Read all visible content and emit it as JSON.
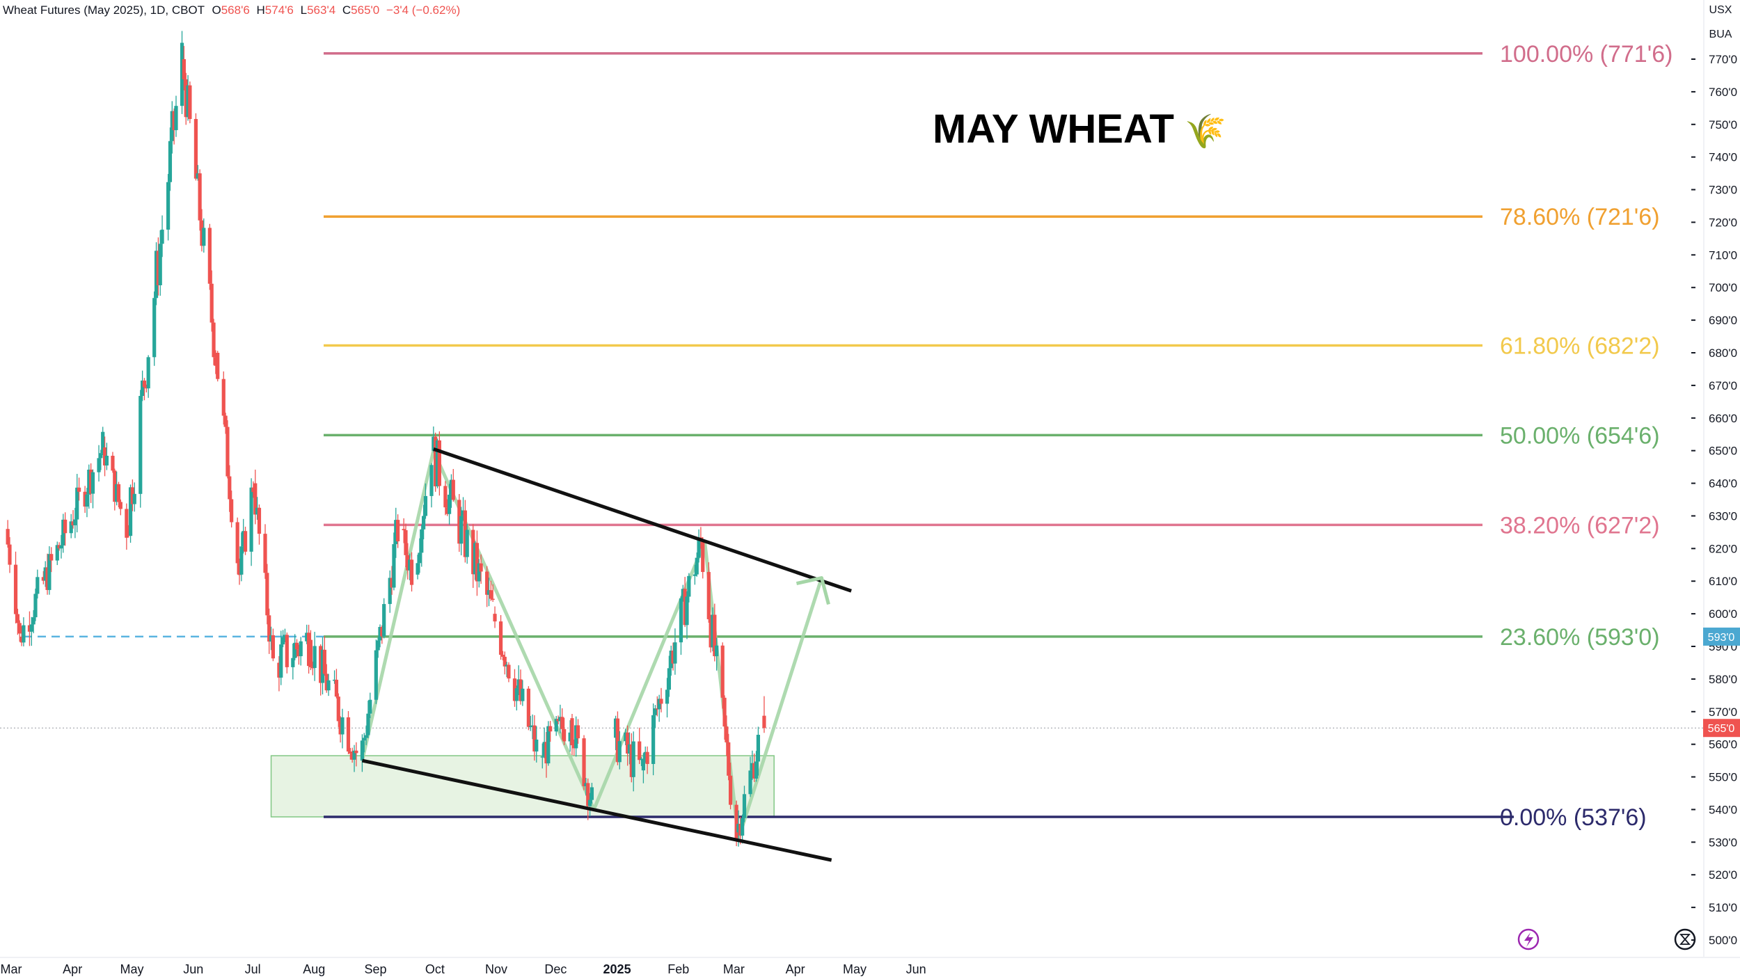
{
  "header": {
    "symbol_title": "Wheat Futures (May 2025), 1D, CBOT",
    "open_label": "O",
    "open_value": "568'6",
    "high_label": "H",
    "high_value": "574'6",
    "low_label": "L",
    "low_value": "563'4",
    "close_label": "C",
    "close_value": "565'0",
    "change": "−3'4 (−0.62%)"
  },
  "price_scale": {
    "currency": "USX",
    "unit": "BUA",
    "current_price_label": "565'0",
    "line_price_label": "593'0"
  },
  "annotation_title": "MAY WHEAT",
  "annotation_emoji": "🌾",
  "colors": {
    "up": "#26a69a",
    "down": "#ef5350",
    "fib_100": "#d16d8b",
    "fib_786": "#f0a030",
    "fib_618": "#f2c94c",
    "fib_50": "#6ab06c",
    "fib_382": "#e0758f",
    "fib_236": "#6ab06c",
    "fib_0": "#2c2a6b",
    "zone_fill": "#e7f3e3",
    "zone_stroke": "#81c784",
    "pattern_line": "#a5d6a7",
    "channel": "#111111",
    "dashed": "#5ab4e0",
    "price_badge": "#ef5350",
    "line_badge": "#4ba8d1"
  },
  "chart_data": {
    "type": "candlestick",
    "title": "Wheat Futures (May 2025), 1D, CBOT",
    "y_axis": {
      "min": 500,
      "max": 770,
      "tick_labels": [
        "770'0",
        "760'0",
        "750'0",
        "740'0",
        "730'0",
        "720'0",
        "710'0",
        "700'0",
        "690'0",
        "680'0",
        "670'0",
        "660'0",
        "650'0",
        "640'0",
        "630'0",
        "620'0",
        "610'0",
        "600'0",
        "590'0",
        "580'0",
        "570'0",
        "560'0",
        "550'0",
        "540'0",
        "530'0",
        "520'0",
        "510'0",
        "500'0"
      ]
    },
    "x_axis": {
      "tick_labels": [
        "Mar",
        "Apr",
        "May",
        "Jun",
        "Jul",
        "Aug",
        "Sep",
        "Oct",
        "Nov",
        "Dec",
        "2025",
        "Feb",
        "Mar",
        "Apr",
        "May",
        "Jun"
      ],
      "bold_labels": [
        "2025"
      ]
    },
    "fib_levels": [
      {
        "label": "100.00% (771'6)",
        "price": 771.75,
        "color_key": "fib_100"
      },
      {
        "label": "78.60% (721'6)",
        "price": 721.75,
        "color_key": "fib_786"
      },
      {
        "label": "61.80% (682'2)",
        "price": 682.25,
        "color_key": "fib_618"
      },
      {
        "label": "50.00% (654'6)",
        "price": 654.75,
        "color_key": "fib_50"
      },
      {
        "label": "38.20% (627'2)",
        "price": 627.25,
        "color_key": "fib_382"
      },
      {
        "label": "23.60% (593'0)",
        "price": 593.0,
        "color_key": "fib_236"
      },
      {
        "label": "0.00% (537'6)",
        "price": 537.75,
        "color_key": "fib_0"
      }
    ],
    "support_zone": {
      "start": "2024-07-11",
      "end": "2025-03-22",
      "price_low": 537.75,
      "price_high": 556.5
    },
    "dashed_level": {
      "start": "2024-03-01",
      "price": 593.0
    },
    "current_price": 565.0,
    "channel_lines": [
      {
        "name": "upper",
        "from": {
          "date": "2024-10-01",
          "price": 650.5
        },
        "to": {
          "date": "2025-04-30",
          "price": 607
        }
      },
      {
        "name": "lower",
        "from": {
          "date": "2024-08-26",
          "price": 555
        },
        "to": {
          "date": "2025-04-20",
          "price": 524.5
        }
      }
    ],
    "pattern_path": [
      {
        "date": "2024-08-26",
        "price": 555
      },
      {
        "date": "2024-10-01",
        "price": 650
      },
      {
        "date": "2024-12-21",
        "price": 540
      },
      {
        "date": "2025-02-15",
        "price": 622
      },
      {
        "date": "2025-03-04",
        "price": 531
      },
      {
        "date": "2025-04-15",
        "price": 611
      }
    ],
    "candle_segments": [
      {
        "from": "2024-02-29",
        "to": "2024-03-07",
        "open": 626,
        "close": 593,
        "wiggle": 3
      },
      {
        "from": "2024-03-07",
        "to": "2024-04-18",
        "open": 593,
        "close": 651,
        "wiggle": 6
      },
      {
        "from": "2024-04-18",
        "to": "2024-04-30",
        "open": 651,
        "close": 626,
        "wiggle": 5
      },
      {
        "from": "2024-04-30",
        "to": "2024-05-28",
        "open": 626,
        "close": 770,
        "wiggle": 10
      },
      {
        "from": "2024-05-28",
        "to": "2024-06-14",
        "open": 770,
        "close": 680,
        "wiggle": 8
      },
      {
        "from": "2024-06-14",
        "to": "2024-06-26",
        "open": 680,
        "close": 612,
        "wiggle": 7
      },
      {
        "from": "2024-06-26",
        "to": "2024-07-03",
        "open": 612,
        "close": 640,
        "wiggle": 6
      },
      {
        "from": "2024-07-03",
        "to": "2024-07-13",
        "open": 640,
        "close": 585,
        "wiggle": 6
      },
      {
        "from": "2024-07-13",
        "to": "2024-07-31",
        "open": 585,
        "close": 592,
        "wiggle": 8
      },
      {
        "from": "2024-07-31",
        "to": "2024-08-26",
        "open": 592,
        "close": 555,
        "wiggle": 7
      },
      {
        "from": "2024-08-26",
        "to": "2024-09-14",
        "open": 555,
        "close": 626,
        "wiggle": 7
      },
      {
        "from": "2024-09-14",
        "to": "2024-09-22",
        "open": 626,
        "close": 612,
        "wiggle": 6
      },
      {
        "from": "2024-09-22",
        "to": "2024-10-01",
        "open": 612,
        "close": 650,
        "wiggle": 6
      },
      {
        "from": "2024-10-01",
        "to": "2024-11-01",
        "open": 650,
        "close": 600,
        "wiggle": 8
      },
      {
        "from": "2024-11-01",
        "to": "2024-11-24",
        "open": 600,
        "close": 556,
        "wiggle": 7
      },
      {
        "from": "2024-11-24",
        "to": "2024-12-10",
        "open": 556,
        "close": 568,
        "wiggle": 6
      },
      {
        "from": "2024-12-10",
        "to": "2024-12-22",
        "open": 568,
        "close": 540,
        "wiggle": 6
      },
      {
        "from": "2025-01-01",
        "to": "2025-01-15",
        "open": 562,
        "close": 552,
        "wiggle": 7
      },
      {
        "from": "2025-01-15",
        "to": "2025-02-14",
        "open": 552,
        "close": 622,
        "wiggle": 7
      },
      {
        "from": "2025-02-14",
        "to": "2025-03-04",
        "open": 622,
        "close": 533,
        "wiggle": 8
      },
      {
        "from": "2025-03-04",
        "to": "2025-03-17",
        "open": 533,
        "close": 565,
        "wiggle": 6
      }
    ],
    "last_candle": {
      "date": "2025-03-17",
      "open": 568.75,
      "high": 574.75,
      "low": 563.5,
      "close": 565.0
    },
    "bottom_icons": [
      "lightning-icon",
      "replay-icon"
    ]
  }
}
